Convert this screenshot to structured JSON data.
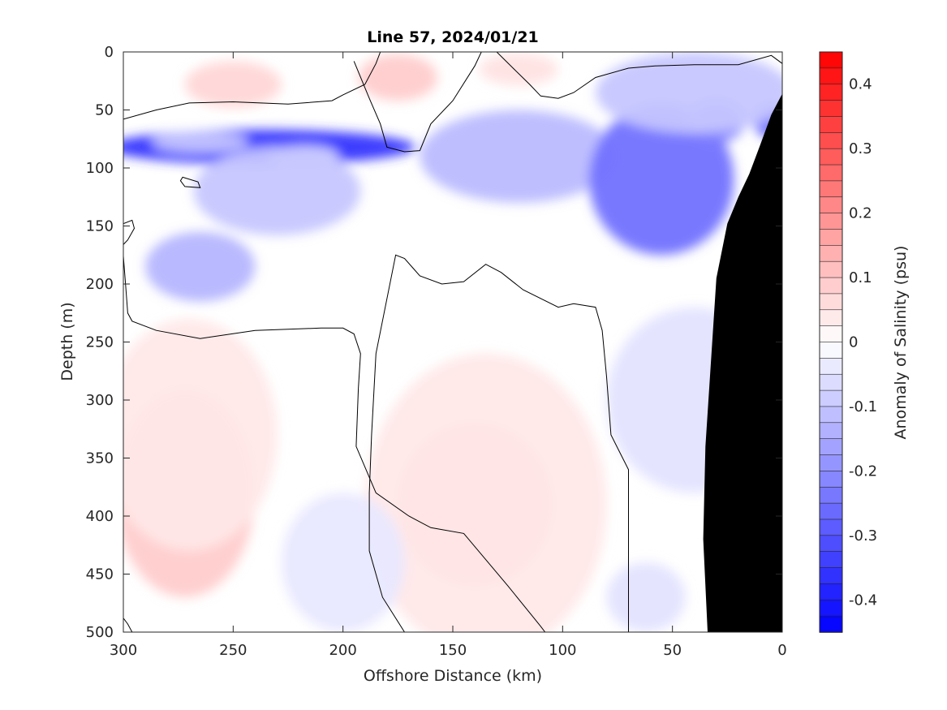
{
  "chart_data": {
    "type": "heatmap",
    "subtype": "filled-contour",
    "title": "Line 57, 2024/01/21",
    "xlabel": "Offshore Distance (km)",
    "ylabel": "Depth (m)",
    "xlim": [
      300,
      0
    ],
    "ylim": [
      0,
      500
    ],
    "x_reversed": true,
    "y_reversed": true,
    "xticks": [
      "300",
      "250",
      "200",
      "150",
      "100",
      "50",
      "0"
    ],
    "xtick_values": [
      300,
      250,
      200,
      150,
      100,
      50,
      0
    ],
    "yticks": [
      "0",
      "50",
      "100",
      "150",
      "200",
      "250",
      "300",
      "350",
      "400",
      "450",
      "500"
    ],
    "ytick_values": [
      0,
      50,
      100,
      150,
      200,
      250,
      300,
      350,
      400,
      450,
      500
    ],
    "colorbar": {
      "label": "Anomaly of Salinity (psu)",
      "limits": [
        -0.45,
        0.45
      ],
      "step": 0.025,
      "ticks": [
        "0.4",
        "0.3",
        "0.2",
        "0.1",
        "0",
        "-0.1",
        "-0.2",
        "-0.3",
        "-0.4"
      ],
      "tick_values": [
        0.4,
        0.3,
        0.2,
        0.1,
        0,
        -0.1,
        -0.2,
        -0.3,
        -0.4
      ],
      "colormap": "blue-white-red"
    },
    "zero_contour": true,
    "grid": false,
    "features": [
      {
        "type": "blob",
        "x": 237,
        "y": 82,
        "rx": 70,
        "ry": 15,
        "value": -0.36
      },
      {
        "type": "blob",
        "x": 265,
        "y": 78,
        "rx": 22,
        "ry": 9,
        "value": -0.1
      },
      {
        "type": "blob",
        "x": 218,
        "y": 90,
        "rx": 16,
        "ry": 9,
        "value": -0.07
      },
      {
        "type": "blob",
        "x": 230,
        "y": 120,
        "rx": 38,
        "ry": 38,
        "value": -0.1
      },
      {
        "type": "blob",
        "x": 265,
        "y": 185,
        "rx": 25,
        "ry": 30,
        "value": -0.13
      },
      {
        "type": "blob",
        "x": 250,
        "y": 28,
        "rx": 22,
        "ry": 20,
        "value": 0.07
      },
      {
        "type": "blob",
        "x": 175,
        "y": 22,
        "rx": 18,
        "ry": 20,
        "value": 0.09
      },
      {
        "type": "blob",
        "x": 120,
        "y": 15,
        "rx": 18,
        "ry": 14,
        "value": 0.05
      },
      {
        "type": "blob",
        "x": 120,
        "y": 90,
        "rx": 45,
        "ry": 40,
        "value": -0.12
      },
      {
        "type": "blob",
        "x": 55,
        "y": 110,
        "rx": 33,
        "ry": 65,
        "value": -0.25
      },
      {
        "type": "blob",
        "x": 30,
        "y": 60,
        "rx": 13,
        "ry": 18,
        "value": -0.22
      },
      {
        "type": "blob",
        "x": 5,
        "y": 60,
        "rx": 8,
        "ry": 15,
        "value": -0.25
      },
      {
        "type": "blob",
        "x": 40,
        "y": 35,
        "rx": 45,
        "ry": 35,
        "value": -0.1
      },
      {
        "type": "blob",
        "x": 140,
        "y": 390,
        "rx": 35,
        "ry": 70,
        "value": 0.12
      },
      {
        "type": "blob",
        "x": 135,
        "y": 390,
        "rx": 55,
        "ry": 130,
        "value": 0.04
      },
      {
        "type": "blob",
        "x": 272,
        "y": 380,
        "rx": 32,
        "ry": 90,
        "value": 0.09
      },
      {
        "type": "blob",
        "x": 270,
        "y": 330,
        "rx": 40,
        "ry": 100,
        "value": 0.04
      },
      {
        "type": "blob",
        "x": 200,
        "y": 440,
        "rx": 28,
        "ry": 60,
        "value": -0.04
      },
      {
        "type": "blob",
        "x": 62,
        "y": 470,
        "rx": 18,
        "ry": 30,
        "value": -0.05
      },
      {
        "type": "blob",
        "x": 40,
        "y": 300,
        "rx": 40,
        "ry": 80,
        "value": -0.05
      }
    ],
    "zero_contours": [
      {
        "closed": false,
        "points": [
          [
            300,
            58
          ],
          [
            285,
            50
          ],
          [
            270,
            44
          ],
          [
            250,
            43
          ],
          [
            225,
            45
          ],
          [
            205,
            42
          ],
          [
            200,
            37
          ],
          [
            190,
            28
          ],
          [
            185,
            10
          ],
          [
            183,
            0
          ]
        ]
      },
      {
        "closed": false,
        "points": [
          [
            195,
            8
          ],
          [
            188,
            40
          ],
          [
            183,
            62
          ],
          [
            180,
            82
          ],
          [
            172,
            86
          ],
          [
            165,
            85
          ],
          [
            160,
            62
          ],
          [
            150,
            42
          ],
          [
            140,
            12
          ],
          [
            137,
            0
          ]
        ]
      },
      {
        "closed": false,
        "points": [
          [
            130,
            0
          ],
          [
            122,
            15
          ],
          [
            115,
            28
          ],
          [
            110,
            38
          ],
          [
            102,
            40
          ],
          [
            95,
            35
          ],
          [
            85,
            22
          ],
          [
            70,
            14
          ],
          [
            58,
            12
          ],
          [
            40,
            11
          ],
          [
            20,
            11
          ],
          [
            5,
            3
          ],
          [
            0,
            10
          ]
        ]
      },
      {
        "closed": true,
        "points": [
          [
            273,
            108
          ],
          [
            266,
            112
          ],
          [
            265,
            117
          ],
          [
            272,
            116
          ],
          [
            274,
            111
          ]
        ]
      },
      {
        "closed": false,
        "points": [
          [
            300,
            148
          ],
          [
            296,
            145
          ],
          [
            295,
            152
          ],
          [
            298,
            162
          ],
          [
            300,
            166
          ]
        ]
      },
      {
        "closed": false,
        "points": [
          [
            300,
            176
          ],
          [
            299,
            200
          ],
          [
            298,
            225
          ],
          [
            296,
            232
          ],
          [
            285,
            240
          ],
          [
            265,
            247
          ],
          [
            240,
            240
          ],
          [
            210,
            238
          ],
          [
            200,
            238
          ],
          [
            195,
            243
          ],
          [
            192,
            260
          ],
          [
            193,
            290
          ],
          [
            194,
            340
          ],
          [
            185,
            380
          ],
          [
            170,
            400
          ],
          [
            160,
            410
          ],
          [
            145,
            415
          ],
          [
            125,
            460
          ],
          [
            110,
            495
          ],
          [
            108,
            500
          ]
        ]
      },
      {
        "closed": false,
        "points": [
          [
            172,
            500
          ],
          [
            182,
            470
          ],
          [
            188,
            430
          ],
          [
            188,
            380
          ],
          [
            187,
            330
          ],
          [
            185,
            260
          ],
          [
            176,
            175
          ],
          [
            172,
            178
          ],
          [
            165,
            193
          ],
          [
            155,
            200
          ],
          [
            145,
            198
          ],
          [
            135,
            183
          ],
          [
            128,
            190
          ],
          [
            118,
            205
          ],
          [
            102,
            220
          ],
          [
            95,
            217
          ],
          [
            85,
            220
          ],
          [
            82,
            240
          ],
          [
            80,
            280
          ],
          [
            78,
            330
          ],
          [
            70,
            360
          ],
          [
            70,
            430
          ],
          [
            70,
            500
          ]
        ]
      },
      {
        "closed": false,
        "points": [
          [
            300,
            488
          ],
          [
            298,
            493
          ],
          [
            296,
            500
          ]
        ]
      }
    ],
    "land": {
      "color": "#000000",
      "points": [
        [
          0,
          36
        ],
        [
          5,
          54
        ],
        [
          10,
          80
        ],
        [
          15,
          105
        ],
        [
          20,
          125
        ],
        [
          25,
          148
        ],
        [
          30,
          195
        ],
        [
          35,
          340
        ],
        [
          36,
          420
        ],
        [
          34,
          500
        ],
        [
          0,
          500
        ]
      ]
    }
  }
}
